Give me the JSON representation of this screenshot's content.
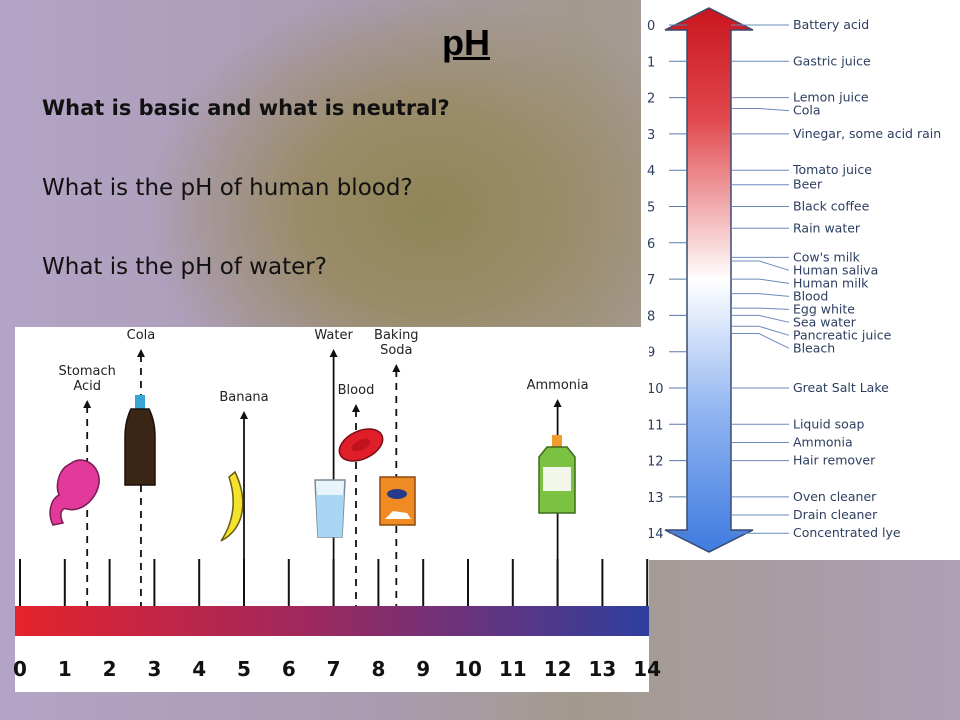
{
  "slide": {
    "title": "pH",
    "questions": [
      "What is basic and what is neutral?",
      "What is the pH of human blood?",
      "What is the pH of water?"
    ]
  },
  "scale_chart": {
    "numbers": [
      "0",
      "1",
      "2",
      "3",
      "4",
      "5",
      "6",
      "7",
      "8",
      "9",
      "10",
      "11",
      "12",
      "13",
      "14"
    ],
    "items": [
      {
        "label": "Battery acid",
        "ph": 0
      },
      {
        "label": "Gastric juice",
        "ph": 1
      },
      {
        "label": "Lemon juice",
        "ph": 2
      },
      {
        "label": "Cola",
        "ph": 2.3
      },
      {
        "label": "Vinegar, some acid rain",
        "ph": 3
      },
      {
        "label": "Tomato juice",
        "ph": 4
      },
      {
        "label": "Beer",
        "ph": 4.4
      },
      {
        "label": "Black coffee",
        "ph": 5
      },
      {
        "label": "Rain water",
        "ph": 5.6
      },
      {
        "label": "Cow's milk",
        "ph": 6.4
      },
      {
        "label": "Human saliva",
        "ph": 6.5
      },
      {
        "label": "Human milk",
        "ph": 7
      },
      {
        "label": "Blood",
        "ph": 7.4
      },
      {
        "label": "Egg white",
        "ph": 7.8
      },
      {
        "label": "Sea water",
        "ph": 8
      },
      {
        "label": "Pancreatic juice",
        "ph": 8.3
      },
      {
        "label": "Bleach",
        "ph": 8.5
      },
      {
        "label": "Great Salt Lake",
        "ph": 10
      },
      {
        "label": "Liquid soap",
        "ph": 11
      },
      {
        "label": "Ammonia",
        "ph": 11.5
      },
      {
        "label": "Hair remover",
        "ph": 12
      },
      {
        "label": "Oven cleaner",
        "ph": 13
      },
      {
        "label": "Drain cleaner",
        "ph": 13.5
      },
      {
        "label": "Concentrated lye",
        "ph": 14
      }
    ],
    "colors": {
      "acid": "#d3202a",
      "neutral": "#ffffff",
      "base": "#4a86e8"
    }
  },
  "bottom_chart": {
    "numbers": [
      "0",
      "1",
      "2",
      "3",
      "4",
      "5",
      "6",
      "7",
      "8",
      "9",
      "10",
      "11",
      "12",
      "13",
      "14"
    ],
    "substances": [
      {
        "label": "Stomach Acid",
        "ph": 1.5
      },
      {
        "label": "Cola",
        "ph": 2.7
      },
      {
        "label": "Banana",
        "ph": 5
      },
      {
        "label": "Water",
        "ph": 7
      },
      {
        "label": "Blood",
        "ph": 7.5
      },
      {
        "label": "Baking Soda",
        "ph": 8.4
      },
      {
        "label": "Ammonia",
        "ph": 12
      }
    ],
    "colors": {
      "acid": "#e5232c",
      "base": "#2e3f9e"
    }
  }
}
